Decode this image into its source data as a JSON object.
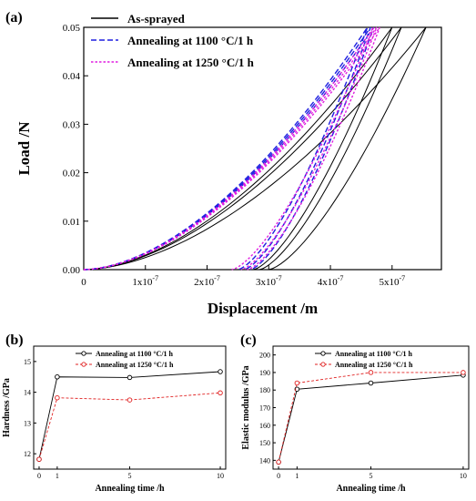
{
  "figure": {
    "panel_a_label": "(a)",
    "panel_b_label": "(b)",
    "panel_c_label": "(c)"
  },
  "chart_data": [
    {
      "id": "a",
      "type": "line",
      "title": "",
      "xlabel": "Displacement  /m",
      "ylabel": "Load  /N",
      "xlim": [
        0,
        5.8e-07
      ],
      "ylim": [
        0,
        0.05
      ],
      "xtick_labels": [
        "0",
        "1x10-7",
        "2x10-7",
        "3x10-7",
        "4x10-7",
        "5x10-7"
      ],
      "ytick_labels": [
        "0.00",
        "0.01",
        "0.02",
        "0.03",
        "0.04",
        "0.05"
      ],
      "legend_position": "top-left",
      "series": [
        {
          "name": "As-sprayed",
          "color": "#000000",
          "dash": "solid",
          "curves": [
            {
              "max_disp": 5e-07,
              "residual": 2.75e-07
            },
            {
              "max_disp": 5.15e-07,
              "residual": 2.85e-07
            },
            {
              "max_disp": 5.55e-07,
              "residual": 3e-07
            }
          ]
        },
        {
          "name": "Annealing at 1100 °C/1 h",
          "color": "#1f1fe0",
          "dash": "dashed",
          "curves": [
            {
              "max_disp": 4.6e-07,
              "residual": 2.5e-07
            },
            {
              "max_disp": 4.65e-07,
              "residual": 2.6e-07
            },
            {
              "max_disp": 4.7e-07,
              "residual": 2.7e-07
            }
          ]
        },
        {
          "name": "Annealing at 1250 °C/1 h",
          "color": "#e01fe0",
          "dash": "dotted",
          "curves": [
            {
              "max_disp": 4.7e-07,
              "residual": 2.4e-07
            },
            {
              "max_disp": 4.75e-07,
              "residual": 2.55e-07
            },
            {
              "max_disp": 4.8e-07,
              "residual": 2.65e-07
            }
          ]
        }
      ]
    },
    {
      "id": "b",
      "type": "line",
      "title": "",
      "xlabel": "Annealing time  /h",
      "ylabel": "Hardness  /GPa",
      "x": [
        0,
        1,
        5,
        10
      ],
      "xlim": [
        -0.3,
        10.3
      ],
      "ylim": [
        11.5,
        15.5
      ],
      "yticks": [
        12,
        13,
        14,
        15
      ],
      "xtick_labels": [
        "0",
        "1",
        "5",
        "10"
      ],
      "legend_position": "top-right",
      "series": [
        {
          "name": "Annealing at 1100 °C/1 h",
          "color": "#000000",
          "dash": "solid",
          "values": [
            11.82,
            14.5,
            14.48,
            14.67
          ]
        },
        {
          "name": "Annealing at 1250 °C/1 h",
          "color": "#e02020",
          "dash": "dashed",
          "values": [
            11.82,
            13.82,
            13.75,
            13.98
          ]
        }
      ]
    },
    {
      "id": "c",
      "type": "line",
      "title": "",
      "xlabel": "Annealing time  /h",
      "ylabel": "Elastic modulus  /GPa",
      "x": [
        0,
        1,
        5,
        10
      ],
      "xlim": [
        -0.3,
        10.3
      ],
      "ylim": [
        135,
        205
      ],
      "yticks": [
        140,
        150,
        160,
        170,
        180,
        190,
        200
      ],
      "xtick_labels": [
        "0",
        "1",
        "5",
        "10"
      ],
      "legend_position": "top-right",
      "series": [
        {
          "name": "Annealing at 1100 °C/1 h",
          "color": "#000000",
          "dash": "solid",
          "values": [
            139,
            180.5,
            184,
            188.5
          ]
        },
        {
          "name": "Annealing at 1250 °C/1 h",
          "color": "#e02020",
          "dash": "dashed",
          "values": [
            139,
            184,
            190,
            190
          ]
        }
      ]
    }
  ]
}
